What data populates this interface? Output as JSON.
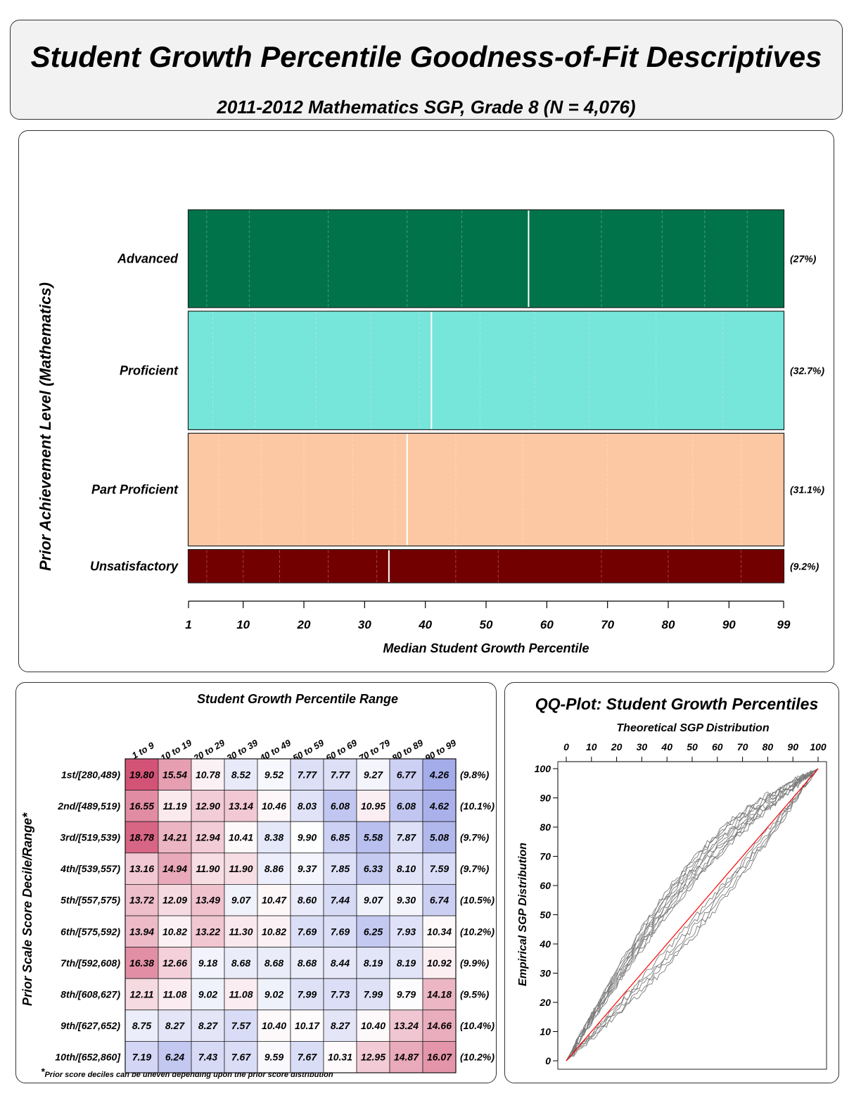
{
  "header": {
    "title": "Student Growth Percentile Goodness-of-Fit Descriptives",
    "subtitle": "2011-2012 Mathematics SGP, Grade 8 (N = 4,076)"
  },
  "chart_data": [
    {
      "type": "bar",
      "ylabel": "Prior Achievement Level (Mathematics)",
      "xlabel": "Median Student Growth Percentile",
      "xticks": [
        "1",
        "10",
        "20",
        "30",
        "40",
        "50",
        "60",
        "70",
        "80",
        "90",
        "99"
      ],
      "xlim": [
        1,
        99
      ],
      "categories": [
        {
          "label": "Advanced",
          "pct": "(27%)",
          "share": 27,
          "median": 57,
          "color": "#00734a"
        },
        {
          "label": "Proficient",
          "pct": "(32.7%)",
          "share": 32.7,
          "median": 41,
          "color": "#76e5da"
        },
        {
          "label": "Part Proficient",
          "pct": "(31.1%)",
          "share": 31.1,
          "median": 37,
          "color": "#fcc8a4"
        },
        {
          "label": "Unsatisfactory",
          "pct": "(9.2%)",
          "share": 9.2,
          "median": 34,
          "color": "#730000"
        }
      ]
    },
    {
      "type": "heatmap",
      "title": "Student Growth Percentile Range",
      "ylabel": "Prior Scale Score Decile/Range*",
      "columns": [
        "1 to 9",
        "10 to 19",
        "20 to 29",
        "30 to 39",
        "40 to 49",
        "50 to 59",
        "60 to 69",
        "70 to 79",
        "80 to 89",
        "90 to 99"
      ],
      "rows": [
        {
          "label": "1st/[280,489)",
          "pct": "(9.8%)",
          "values": [
            "19.80",
            "15.54",
            "10.78",
            "8.52",
            "9.52",
            "7.77",
            "7.77",
            "9.27",
            "6.77",
            "4.26"
          ]
        },
        {
          "label": "2nd/[489,519)",
          "pct": "(10.1%)",
          "values": [
            "16.55",
            "11.19",
            "12.90",
            "13.14",
            "10.46",
            "8.03",
            "6.08",
            "10.95",
            "6.08",
            "4.62"
          ]
        },
        {
          "label": "3rd/[519,539)",
          "pct": "(9.7%)",
          "values": [
            "18.78",
            "14.21",
            "12.94",
            "10.41",
            "8.38",
            "9.90",
            "6.85",
            "5.58",
            "7.87",
            "5.08"
          ]
        },
        {
          "label": "4th/[539,557)",
          "pct": "(9.7%)",
          "values": [
            "13.16",
            "14.94",
            "11.90",
            "11.90",
            "8.86",
            "9.37",
            "7.85",
            "6.33",
            "8.10",
            "7.59"
          ]
        },
        {
          "label": "5th/[557,575)",
          "pct": "(10.5%)",
          "values": [
            "13.72",
            "12.09",
            "13.49",
            "9.07",
            "10.47",
            "8.60",
            "7.44",
            "9.07",
            "9.30",
            "6.74"
          ]
        },
        {
          "label": "6th/[575,592)",
          "pct": "(10.2%)",
          "values": [
            "13.94",
            "10.82",
            "13.22",
            "11.30",
            "10.82",
            "7.69",
            "7.69",
            "6.25",
            "7.93",
            "10.34"
          ]
        },
        {
          "label": "7th/[592,608)",
          "pct": "(9.9%)",
          "values": [
            "16.38",
            "12.66",
            "9.18",
            "8.68",
            "8.68",
            "8.68",
            "8.44",
            "8.19",
            "8.19",
            "10.92"
          ]
        },
        {
          "label": "8th/[608,627)",
          "pct": "(9.5%)",
          "values": [
            "12.11",
            "11.08",
            "9.02",
            "11.08",
            "9.02",
            "7.99",
            "7.73",
            "7.99",
            "9.79",
            "14.18"
          ]
        },
        {
          "label": "9th/[627,652)",
          "pct": "(10.4%)",
          "values": [
            "8.75",
            "8.27",
            "8.27",
            "7.57",
            "10.40",
            "10.17",
            "8.27",
            "10.40",
            "13.24",
            "14.66"
          ]
        },
        {
          "label": "10th/[652,860]",
          "pct": "(10.2%)",
          "values": [
            "7.19",
            "6.24",
            "7.43",
            "7.67",
            "9.59",
            "7.67",
            "10.31",
            "12.95",
            "14.87",
            "16.07"
          ]
        }
      ],
      "footnote_mark": "*",
      "footnote": "Prior score deciles can be uneven depending upon the prior score distribution"
    },
    {
      "type": "line",
      "title": "QQ-Plot: Student Growth Percentiles",
      "xlabel": "Theoretical SGP Distribution",
      "ylabel": "Empirical SGP Distribution",
      "xticks": [
        "0",
        "10",
        "20",
        "30",
        "40",
        "50",
        "60",
        "70",
        "80",
        "90",
        "100"
      ],
      "yticks": [
        "0",
        "10",
        "20",
        "30",
        "40",
        "50",
        "60",
        "70",
        "80",
        "90",
        "100"
      ],
      "xlim": [
        0,
        100
      ],
      "ylim": [
        0,
        100
      ],
      "reference_line_color": "#ff0000",
      "series_color": "#7a7a7a",
      "series_count": 16
    }
  ]
}
